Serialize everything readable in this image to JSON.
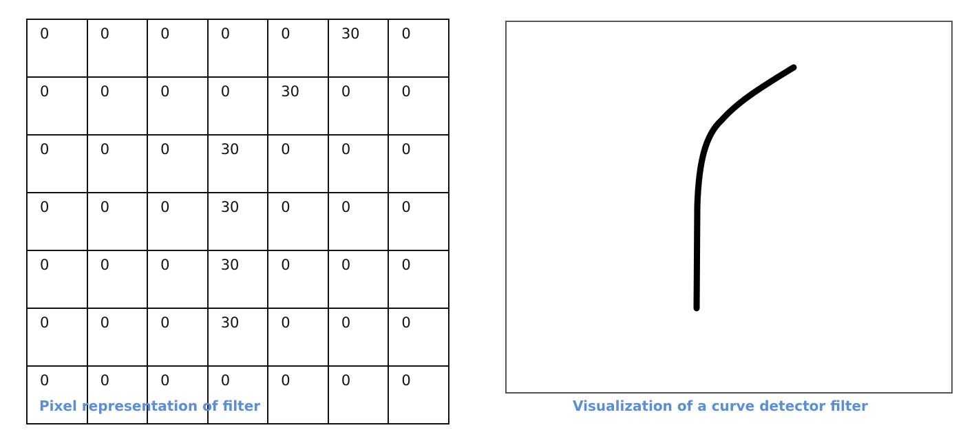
{
  "filter_grid": {
    "rows": [
      [
        "0",
        "0",
        "0",
        "0",
        "0",
        "30",
        "0"
      ],
      [
        "0",
        "0",
        "0",
        "0",
        "30",
        "0",
        "0"
      ],
      [
        "0",
        "0",
        "0",
        "30",
        "0",
        "0",
        "0"
      ],
      [
        "0",
        "0",
        "0",
        "30",
        "0",
        "0",
        "0"
      ],
      [
        "0",
        "0",
        "0",
        "30",
        "0",
        "0",
        "0"
      ],
      [
        "0",
        "0",
        "0",
        "30",
        "0",
        "0",
        "0"
      ],
      [
        "0",
        "0",
        "0",
        "0",
        "0",
        "0",
        "0"
      ]
    ],
    "caption": "Pixel representation  of filter"
  },
  "visualization": {
    "caption": "Visualization of a curve detector  filter",
    "curve_color": "#000000"
  },
  "colors": {
    "caption": "#5b8fd1",
    "grid_line": "#111111"
  }
}
